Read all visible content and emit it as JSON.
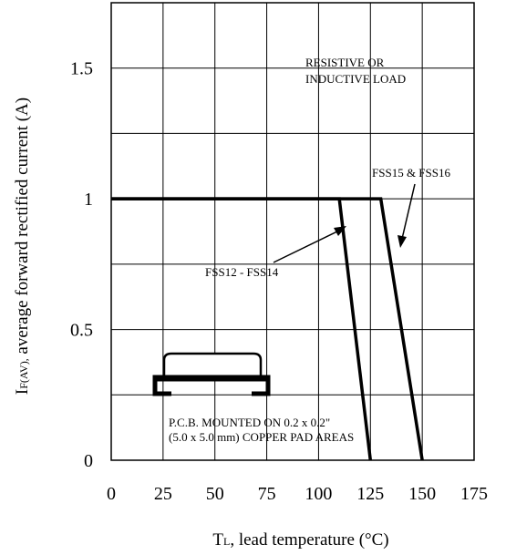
{
  "chart_data": {
    "type": "line",
    "x_label": {
      "main": "T",
      "sub": "L",
      "rest": ", lead temperature (°C)"
    },
    "y_label": {
      "main": "I",
      "sub": "F(AV),",
      "rest": " average forward rectified current (A)"
    },
    "xlim": [
      0,
      175
    ],
    "xticks": [
      0,
      25,
      50,
      75,
      100,
      125,
      150,
      175
    ],
    "ylim": [
      0,
      1.75
    ],
    "yticks": [
      0,
      0.5,
      1,
      1.5
    ],
    "minor_yticks": [
      0.25,
      0.75,
      1.25
    ],
    "grid": true,
    "series": [
      {
        "name": "FSS12 - FSS14",
        "color": "#000000",
        "x": [
          0,
          110,
          125
        ],
        "values": [
          1,
          1,
          0
        ]
      },
      {
        "name": "FSS15 & FSS16",
        "color": "#000000",
        "x": [
          0,
          130,
          150
        ],
        "values": [
          1,
          1,
          0
        ]
      }
    ],
    "annotations": [
      "RESISTIVE OR",
      "INDUCTIVE LOAD",
      "P.C.B. MOUNTED ON 0.2 x 0.2\"",
      "(5.0 x 5.0 mm) COPPER PAD AREAS"
    ]
  }
}
